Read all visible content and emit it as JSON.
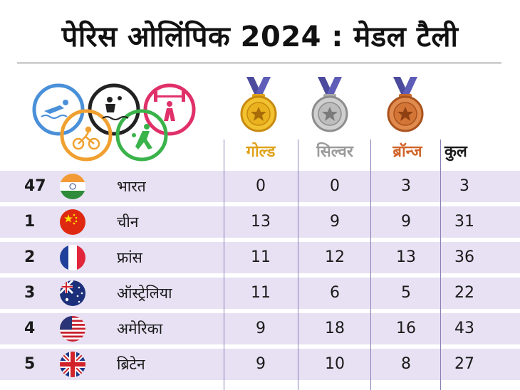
{
  "title": "पेरिस ओलिंपिक 2024 : मेडल टैली",
  "columns": {
    "gold": "गोल्ड",
    "silver": "सिल्वर",
    "bronze": "ब्रॉन्ज",
    "total": "कुल"
  },
  "colors": {
    "row_bg": "#e7e1f3",
    "gold": "#e0a11a",
    "silver": "#9a9a9a",
    "bronze": "#d0652a",
    "divider": "#8a7fb6",
    "ribbon": "#4b4a9c"
  },
  "rows": [
    {
      "rank": "47",
      "flag": "india-flag",
      "country": "भारत",
      "gold": "0",
      "silver": "0",
      "bronze": "3",
      "total": "3"
    },
    {
      "rank": "1",
      "flag": "china-flag",
      "country": "चीन",
      "gold": "13",
      "silver": "9",
      "bronze": "9",
      "total": "31"
    },
    {
      "rank": "2",
      "flag": "france-flag",
      "country": "फ्रांस",
      "gold": "11",
      "silver": "12",
      "bronze": "13",
      "total": "36"
    },
    {
      "rank": "3",
      "flag": "australia-flag",
      "country": "ऑस्ट्रेलिया",
      "gold": "11",
      "silver": "6",
      "bronze": "5",
      "total": "22"
    },
    {
      "rank": "4",
      "flag": "usa-flag",
      "country": "अमेरिका",
      "gold": "9",
      "silver": "18",
      "bronze": "16",
      "total": "43"
    },
    {
      "rank": "5",
      "flag": "uk-flag",
      "country": "ब्रिटेन",
      "gold": "9",
      "silver": "10",
      "bronze": "8",
      "total": "27"
    }
  ]
}
